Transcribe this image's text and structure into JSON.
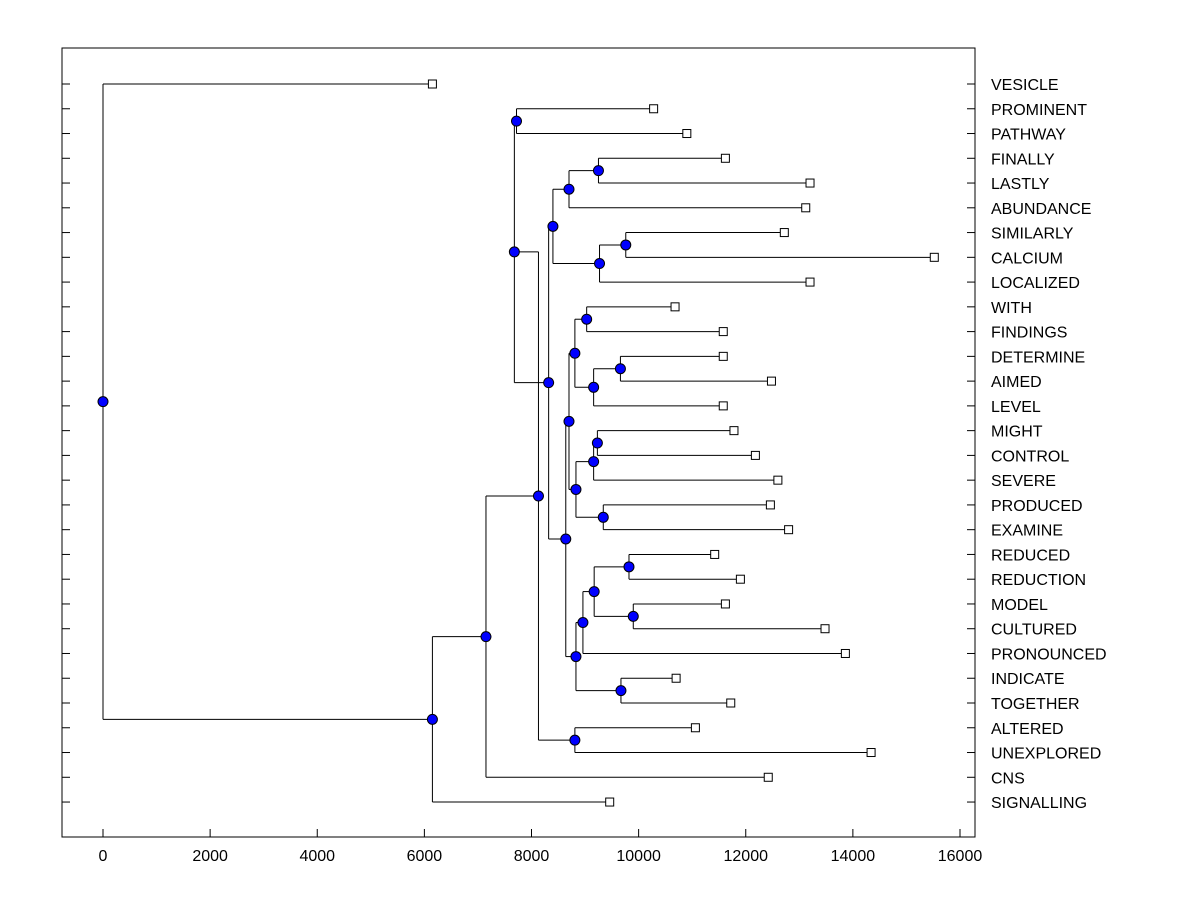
{
  "chart_data": {
    "type": "dendrogram",
    "title": "",
    "xlabel": "",
    "ylabel": "",
    "xlim": [
      -800,
      16200
    ],
    "x_ticks": [
      0,
      2000,
      4000,
      6000,
      8000,
      10000,
      12000,
      14000,
      16000
    ],
    "x_tick_labels": [
      "0",
      "2000",
      "4000",
      "6000",
      "8000",
      "10000",
      "12000",
      "14000",
      "16000"
    ],
    "leaves": [
      {
        "name": "VESICLE",
        "value": 6150
      },
      {
        "name": "PROMINENT",
        "value": 10280
      },
      {
        "name": "PATHWAY",
        "value": 10900
      },
      {
        "name": "FINALLY",
        "value": 11620
      },
      {
        "name": "LASTLY",
        "value": 13200
      },
      {
        "name": "ABUNDANCE",
        "value": 13120
      },
      {
        "name": "SIMILARLY",
        "value": 12720
      },
      {
        "name": "CALCIUM",
        "value": 15520
      },
      {
        "name": "LOCALIZED",
        "value": 13200
      },
      {
        "name": "WITH",
        "value": 10680
      },
      {
        "name": "FINDINGS",
        "value": 11580
      },
      {
        "name": "DETERMINE",
        "value": 11580
      },
      {
        "name": "AIMED",
        "value": 12480
      },
      {
        "name": "LEVEL",
        "value": 11580
      },
      {
        "name": "MIGHT",
        "value": 11780
      },
      {
        "name": "CONTROL",
        "value": 12180
      },
      {
        "name": "SEVERE",
        "value": 12600
      },
      {
        "name": "PRODUCED",
        "value": 12460
      },
      {
        "name": "EXAMINE",
        "value": 12800
      },
      {
        "name": "REDUCED",
        "value": 11420
      },
      {
        "name": "REDUCTION",
        "value": 11900
      },
      {
        "name": "MODEL",
        "value": 11620
      },
      {
        "name": "CULTURED",
        "value": 13480
      },
      {
        "name": "PRONOUNCED",
        "value": 13860
      },
      {
        "name": "INDICATE",
        "value": 10700
      },
      {
        "name": "TOGETHER",
        "value": 11720
      },
      {
        "name": "ALTERED",
        "value": 11060
      },
      {
        "name": "UNEXPLORED",
        "value": 14340
      },
      {
        "name": "CNS",
        "value": 12420
      },
      {
        "name": "SIGNALLING",
        "value": 9460
      }
    ],
    "merges": [
      {
        "id": "m1",
        "height": 7720,
        "children": [
          "PROMINENT",
          "PATHWAY"
        ]
      },
      {
        "id": "m2",
        "height": 9250,
        "children": [
          "FINALLY",
          "LASTLY"
        ]
      },
      {
        "id": "m3",
        "height": 8700,
        "children": [
          "m2",
          "ABUNDANCE"
        ]
      },
      {
        "id": "m4",
        "height": 9760,
        "children": [
          "SIMILARLY",
          "CALCIUM"
        ]
      },
      {
        "id": "m5",
        "height": 9270,
        "children": [
          "m4",
          "LOCALIZED"
        ]
      },
      {
        "id": "m6",
        "height": 8400,
        "children": [
          "m3",
          "m5"
        ]
      },
      {
        "id": "m7",
        "height": 9030,
        "children": [
          "WITH",
          "FINDINGS"
        ]
      },
      {
        "id": "m8",
        "height": 9660,
        "children": [
          "DETERMINE",
          "AIMED"
        ]
      },
      {
        "id": "m9",
        "height": 9160,
        "children": [
          "m8",
          "LEVEL"
        ]
      },
      {
        "id": "m10",
        "height": 8810,
        "children": [
          "m7",
          "m9"
        ]
      },
      {
        "id": "m11",
        "height": 9230,
        "children": [
          "MIGHT",
          "CONTROL"
        ]
      },
      {
        "id": "m12",
        "height": 9160,
        "children": [
          "m11",
          "SEVERE"
        ]
      },
      {
        "id": "m13",
        "height": 9340,
        "children": [
          "PRODUCED",
          "EXAMINE"
        ]
      },
      {
        "id": "m14",
        "height": 8830,
        "children": [
          "m12",
          "m13"
        ]
      },
      {
        "id": "m15",
        "height": 8700,
        "children": [
          "m10",
          "m14"
        ]
      },
      {
        "id": "m16",
        "height": 9820,
        "children": [
          "REDUCED",
          "REDUCTION"
        ]
      },
      {
        "id": "m17",
        "height": 9900,
        "children": [
          "MODEL",
          "CULTURED"
        ]
      },
      {
        "id": "m18",
        "height": 9170,
        "children": [
          "m16",
          "m17"
        ]
      },
      {
        "id": "m19",
        "height": 8960,
        "children": [
          "m18",
          "PRONOUNCED"
        ]
      },
      {
        "id": "m20",
        "height": 9670,
        "children": [
          "INDICATE",
          "TOGETHER"
        ]
      },
      {
        "id": "m21",
        "height": 8830,
        "children": [
          "m19",
          "m20"
        ]
      },
      {
        "id": "m22",
        "height": 8640,
        "children": [
          "m15",
          "m21"
        ]
      },
      {
        "id": "m23",
        "height": 8320,
        "children": [
          "m6",
          "m22"
        ]
      },
      {
        "id": "m24",
        "height": 7680,
        "children": [
          "m1",
          "m23"
        ]
      },
      {
        "id": "m25",
        "height": 8810,
        "children": [
          "ALTERED",
          "UNEXPLORED"
        ]
      },
      {
        "id": "m26",
        "height": 8130,
        "children": [
          "m24",
          "m25"
        ]
      },
      {
        "id": "m27",
        "height": 7150,
        "children": [
          "m26",
          "CNS"
        ]
      },
      {
        "id": "m28",
        "height": 6150,
        "children": [
          "m27",
          "SIGNALLING"
        ]
      },
      {
        "id": "m29",
        "height": 0,
        "children": [
          "VESICLE",
          "m28"
        ]
      }
    ],
    "colors": {
      "node_fill": "#0000ff",
      "leaf_fill": "#ffffff",
      "line": "#000000",
      "background": "#ffffff"
    }
  }
}
